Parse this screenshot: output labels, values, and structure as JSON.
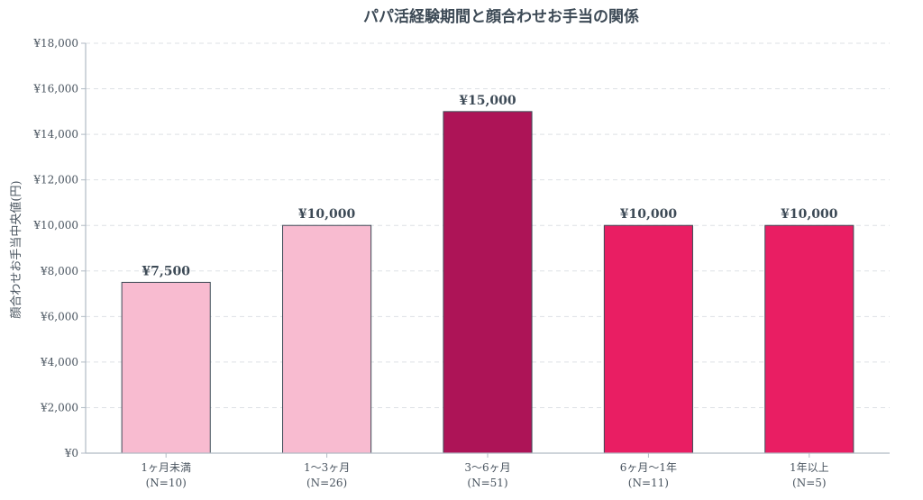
{
  "chart_data": {
    "type": "bar",
    "title": "パパ活経験期間と顔合わせお手当の関係",
    "ylabel": "顔合わせお手当中央値(円)",
    "xlabel": "",
    "ylim": [
      0,
      18000
    ],
    "yticks": [
      0,
      2000,
      4000,
      6000,
      8000,
      10000,
      12000,
      14000,
      16000,
      18000
    ],
    "ytick_labels": [
      "¥0",
      "¥2,000",
      "¥4,000",
      "¥6,000",
      "¥8,000",
      "¥10,000",
      "¥12,000",
      "¥14,000",
      "¥16,000",
      "¥18,000"
    ],
    "grid": true,
    "categories": [
      {
        "line1": "1ヶ月未満",
        "line2": "(N=10)"
      },
      {
        "line1": "1〜3ヶ月",
        "line2": "(N=26)"
      },
      {
        "line1": "3〜6ヶ月",
        "line2": "(N=51)"
      },
      {
        "line1": "6ヶ月〜1年",
        "line2": "(N=11)"
      },
      {
        "line1": "1年以上",
        "line2": "(N=5)"
      }
    ],
    "values": [
      7500,
      10000,
      15000,
      10000,
      10000
    ],
    "value_labels": [
      "¥7,500",
      "¥10,000",
      "¥15,000",
      "¥10,000",
      "¥10,000"
    ],
    "colors": [
      "#f8bbd0",
      "#f8bbd0",
      "#ad1457",
      "#e91e63",
      "#e91e63"
    ]
  }
}
